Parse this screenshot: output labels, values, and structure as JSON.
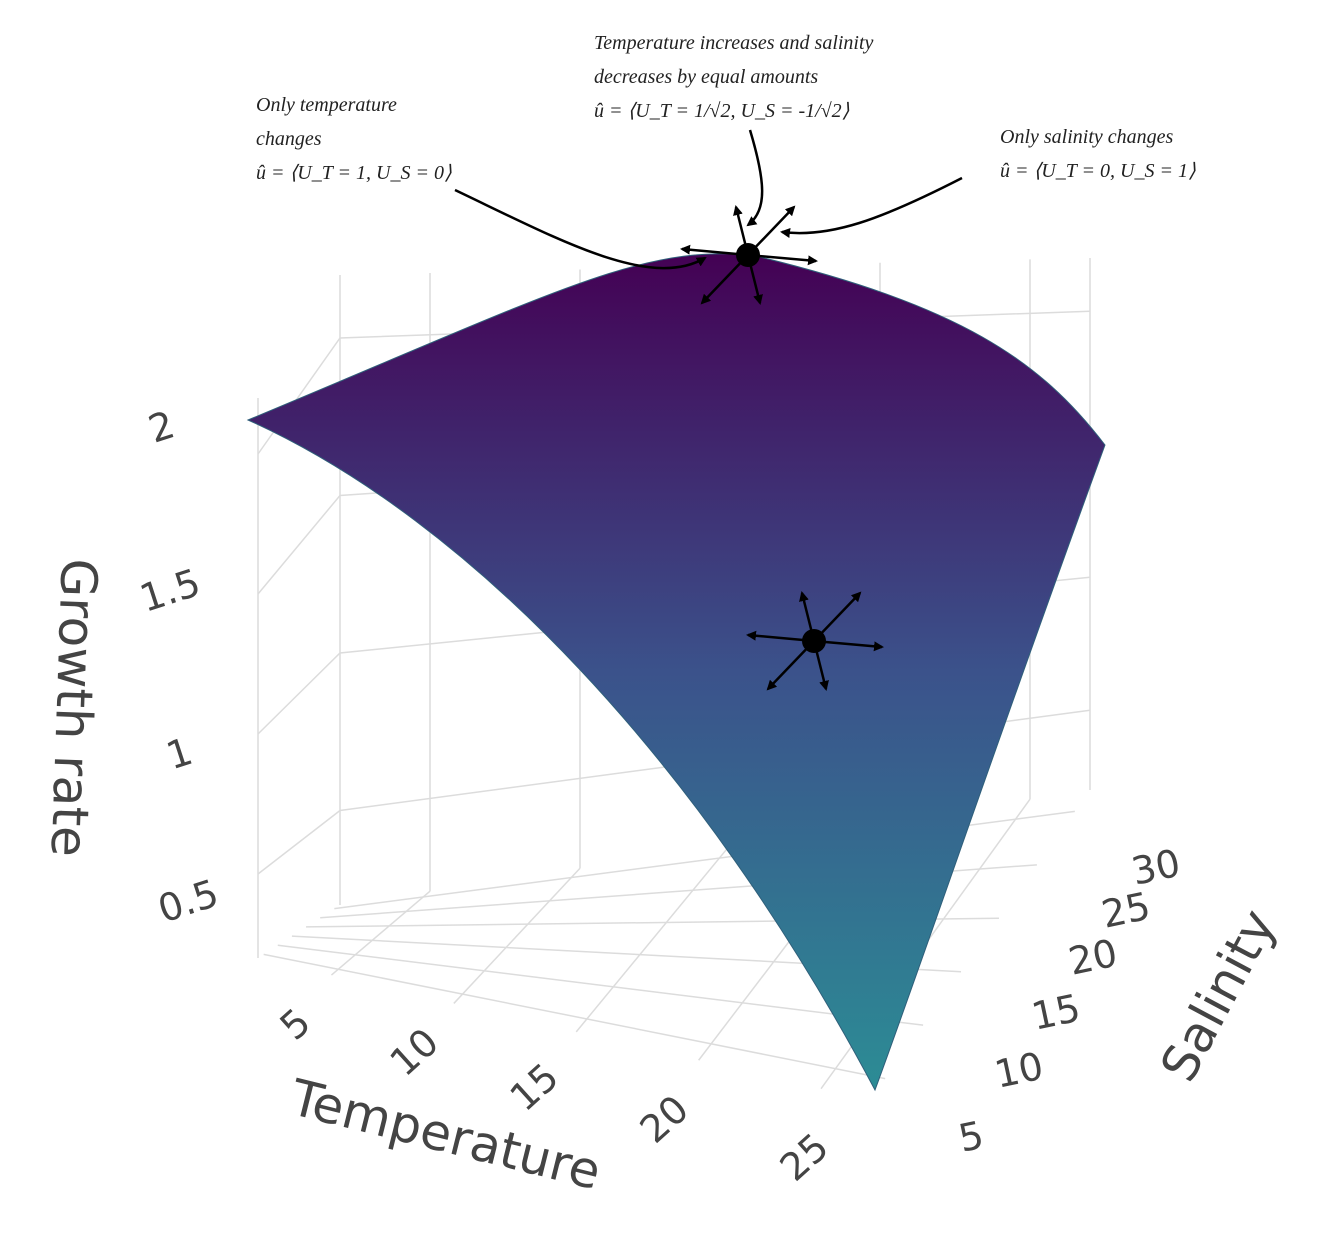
{
  "chart_data": {
    "type": "surface",
    "title": "",
    "xlabel": "Temperature",
    "ylabel": "Salinity",
    "zlabel": "Growth rate",
    "x_ticks": [
      "5",
      "10",
      "15",
      "20",
      "25"
    ],
    "y_ticks": [
      "5",
      "10",
      "15",
      "20",
      "25",
      "30"
    ],
    "z_ticks": [
      "0.5",
      "1",
      "1.5",
      "2"
    ],
    "x_range": [
      2,
      27
    ],
    "y_range": [
      3,
      32
    ],
    "z_range": [
      0.2,
      2.2
    ],
    "colorscale": [
      "#440154",
      "#3b528b",
      "#2c8c95"
    ],
    "grid": true,
    "surface_corners": [
      {
        "temperature": 2,
        "salinity": 3,
        "growth_rate": 2.0
      },
      {
        "temperature": 27,
        "salinity": 3,
        "growth_rate": 0.15
      },
      {
        "temperature": 27,
        "salinity": 32,
        "growth_rate": 1.4
      },
      {
        "temperature": 2,
        "salinity": 32,
        "growth_rate": 2.3
      }
    ],
    "gradient_markers": [
      {
        "temperature": 4,
        "salinity": 31,
        "growth_rate": 2.27
      },
      {
        "temperature": 21,
        "salinity": 24,
        "growth_rate": 1.3
      }
    ]
  },
  "annotations": {
    "temperature_only": {
      "line1": "Only temperature",
      "line2": "changes",
      "line3": "û = ⟨U_T = 1, U_S = 0⟩"
    },
    "diagonal": {
      "line1": "Temperature increases and salinity",
      "line2": "decreases by equal amounts",
      "line3": "û = ⟨U_T = 1/√2, U_S = -1/√2⟩"
    },
    "salinity_only": {
      "line1": "Only salinity changes",
      "line2": "û = ⟨U_T = 0, U_S = 1⟩"
    }
  }
}
